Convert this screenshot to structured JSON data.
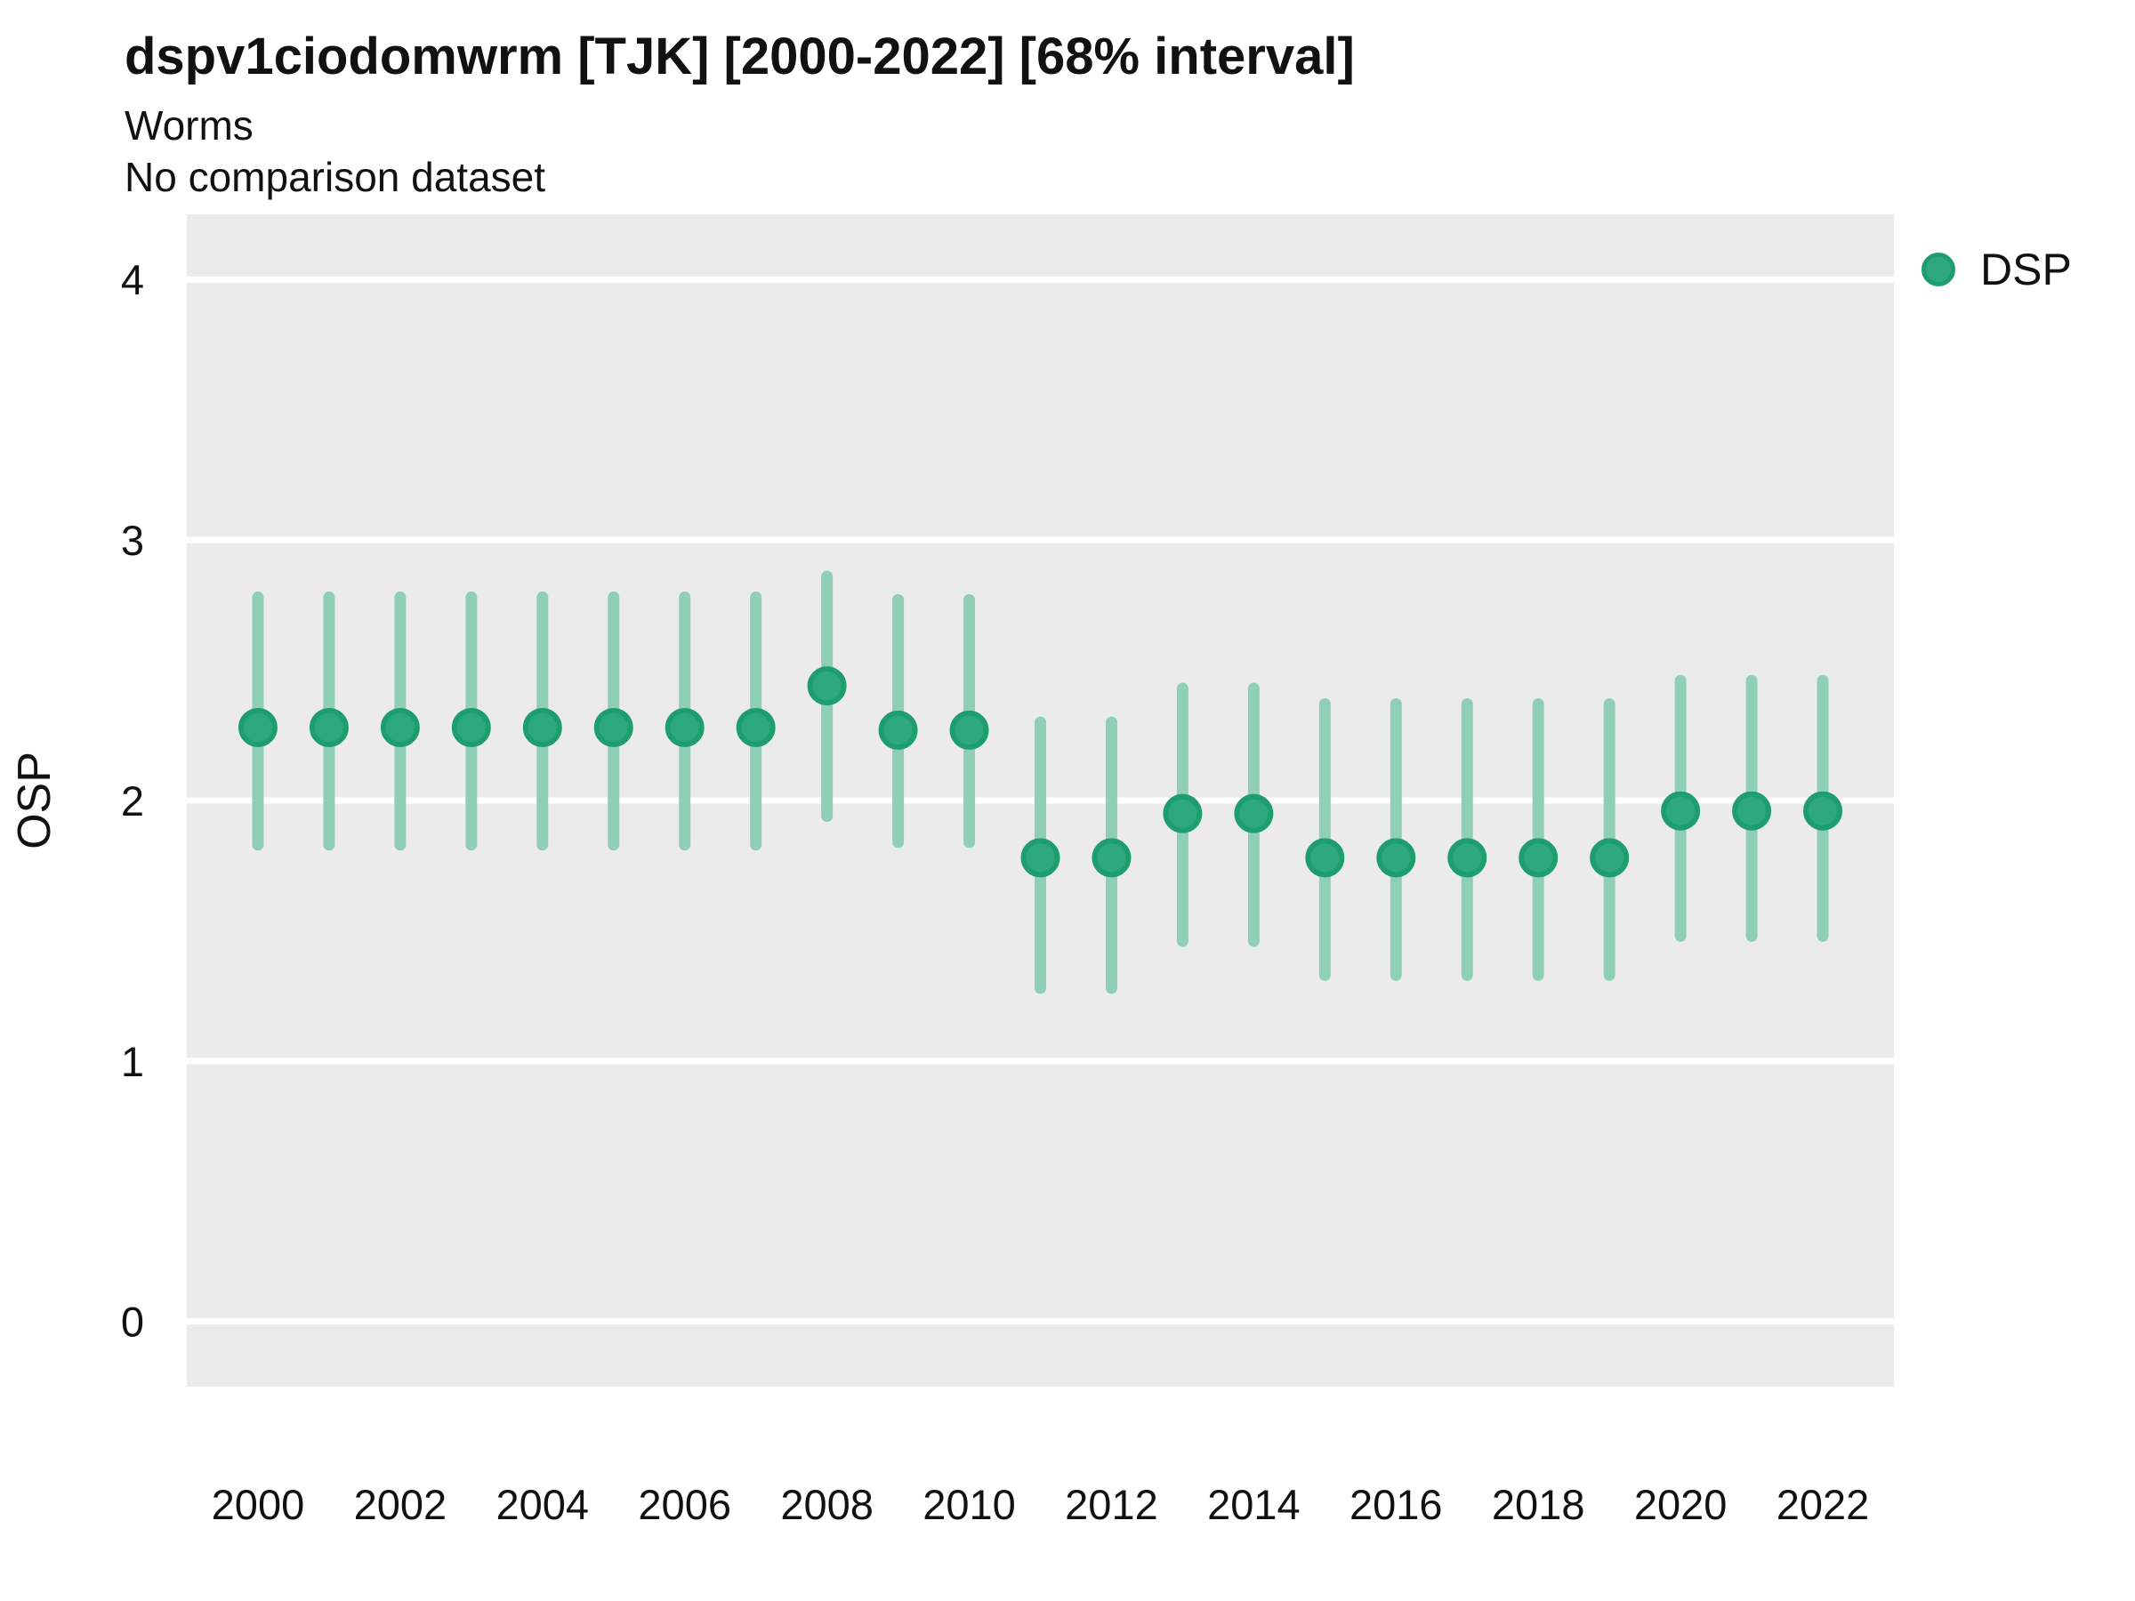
{
  "header": {
    "title": "dspv1ciodomwrm [TJK] [2000-2022] [68% interval]",
    "subtitle": "Worms",
    "comparison_note": "No comparison dataset"
  },
  "legend": {
    "position": "right-top",
    "items": [
      {
        "label": "DSP",
        "marker": "circle-icon",
        "color": "#2EA97C",
        "border": "#1E9E6E"
      }
    ]
  },
  "colors": {
    "panel_bg": "#EBEBEB",
    "grid": "#FFFFFF",
    "point_fill": "#2EA97C",
    "point_stroke": "#1E9E6E",
    "interval_bar": "#8FCFB6",
    "text": "#111111"
  },
  "chart_data": {
    "type": "scatter",
    "title": "dspv1ciodomwrm [TJK] [2000-2022] [68% interval]",
    "subtitle": "Worms",
    "note": "No comparison dataset",
    "interval": "68%",
    "xlabel": "",
    "ylabel": "OSP",
    "xlim": [
      1999,
      2023
    ],
    "ylim": [
      -0.25,
      4.25
    ],
    "x_ticks": [
      2000,
      2002,
      2004,
      2006,
      2008,
      2010,
      2012,
      2014,
      2016,
      2018,
      2020,
      2022
    ],
    "y_ticks": [
      0,
      1,
      2,
      3,
      4
    ],
    "grid": "major-y-only",
    "legend_position": "right",
    "categories": [
      2000,
      2001,
      2002,
      2003,
      2004,
      2005,
      2006,
      2007,
      2008,
      2009,
      2010,
      2011,
      2012,
      2013,
      2014,
      2015,
      2016,
      2017,
      2018,
      2019,
      2020,
      2021,
      2022
    ],
    "series": [
      {
        "name": "DSP",
        "values": [
          2.28,
          2.28,
          2.28,
          2.28,
          2.28,
          2.28,
          2.28,
          2.28,
          2.44,
          2.27,
          2.27,
          1.78,
          1.78,
          1.95,
          1.95,
          1.78,
          1.78,
          1.78,
          1.78,
          1.78,
          1.96,
          1.96,
          1.96
        ],
        "ci_low": [
          1.83,
          1.83,
          1.83,
          1.83,
          1.83,
          1.83,
          1.83,
          1.83,
          1.94,
          1.84,
          1.84,
          1.28,
          1.28,
          1.46,
          1.46,
          1.33,
          1.33,
          1.33,
          1.33,
          1.33,
          1.48,
          1.48,
          1.48
        ],
        "ci_high": [
          2.78,
          2.78,
          2.78,
          2.78,
          2.78,
          2.78,
          2.78,
          2.78,
          2.86,
          2.77,
          2.77,
          2.3,
          2.3,
          2.43,
          2.43,
          2.37,
          2.37,
          2.37,
          2.37,
          2.37,
          2.46,
          2.46,
          2.46
        ]
      }
    ]
  }
}
